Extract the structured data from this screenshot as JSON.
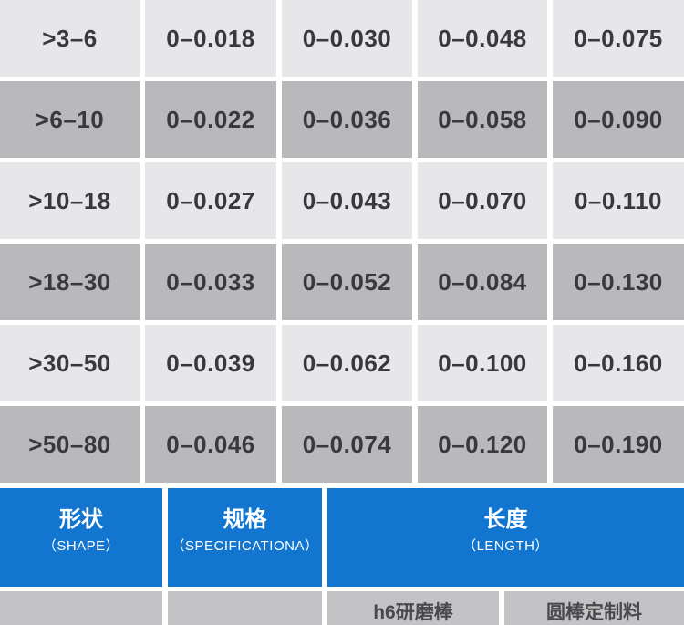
{
  "page": {
    "background": "#ffffff",
    "accent_blue": "#1276d0",
    "row_light": "#e7e7e9",
    "row_dark": "#b9b9bb",
    "row_partial": "#c3c3c5",
    "table_text_color": "#39393b"
  },
  "tolerance_table": {
    "rows": [
      [
        ">3–6",
        "0–0.018",
        "0–0.030",
        "0–0.048",
        "0–0.075"
      ],
      [
        ">6–10",
        "0–0.022",
        "0–0.036",
        "0–0.058",
        "0–0.090"
      ],
      [
        ">10–18",
        "0–0.027",
        "0–0.043",
        "0–0.070",
        "0–0.110"
      ],
      [
        ">18–30",
        "0–0.033",
        "0–0.052",
        "0–0.084",
        "0–0.130"
      ],
      [
        ">30–50",
        "0–0.039",
        "0–0.062",
        "0–0.100",
        "0–0.160"
      ],
      [
        ">50–80",
        "0–0.046",
        "0–0.074",
        "0–0.120",
        "0–0.190"
      ]
    ]
  },
  "spec_header": {
    "columns": [
      {
        "zh": "形状",
        "en": "（SHAPE）"
      },
      {
        "zh": "规格",
        "en": "（SPECIFICATIONA）"
      },
      {
        "zh": "长度",
        "en": "（LENGTH）"
      }
    ]
  },
  "partial_row": {
    "cells": [
      "",
      "",
      "h6研磨棒",
      "圆棒定制料"
    ]
  }
}
